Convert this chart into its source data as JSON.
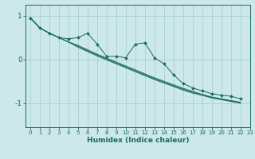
{
  "xlabel": "Humidex (Indice chaleur)",
  "bg_color": "#cce8e8",
  "grid_color": "#aacfcf",
  "line_color": "#1a6b60",
  "xlim": [
    -0.5,
    23
  ],
  "ylim": [
    -1.55,
    1.25
  ],
  "yticks": [
    -1,
    0,
    1
  ],
  "xticks": [
    0,
    1,
    2,
    3,
    4,
    5,
    6,
    7,
    8,
    9,
    10,
    11,
    12,
    13,
    14,
    15,
    16,
    17,
    18,
    19,
    20,
    21,
    22,
    23
  ],
  "straight_lines": [
    [
      0.95,
      0.72,
      0.6,
      0.5,
      0.4,
      0.32,
      0.22,
      0.12,
      0.03,
      -0.06,
      -0.15,
      -0.24,
      -0.33,
      -0.42,
      -0.5,
      -0.58,
      -0.66,
      -0.73,
      -0.8,
      -0.86,
      -0.9,
      -0.94,
      -0.98
    ],
    [
      0.95,
      0.72,
      0.6,
      0.5,
      0.4,
      0.3,
      0.2,
      0.1,
      0.01,
      -0.08,
      -0.17,
      -0.26,
      -0.35,
      -0.44,
      -0.52,
      -0.6,
      -0.68,
      -0.75,
      -0.81,
      -0.87,
      -0.91,
      -0.95,
      -0.99
    ],
    [
      0.95,
      0.72,
      0.6,
      0.5,
      0.4,
      0.28,
      0.18,
      0.08,
      -0.01,
      -0.1,
      -0.19,
      -0.28,
      -0.37,
      -0.46,
      -0.54,
      -0.62,
      -0.7,
      -0.77,
      -0.82,
      -0.88,
      -0.92,
      -0.96,
      -1.0
    ]
  ],
  "spike_series": [
    0.95,
    0.72,
    0.6,
    0.5,
    0.47,
    0.5,
    0.6,
    0.35,
    0.07,
    0.07,
    0.04,
    0.35,
    0.38,
    0.04,
    -0.1,
    -0.35,
    -0.55,
    -0.65,
    -0.72,
    -0.78,
    -0.82,
    -0.84,
    -0.9
  ]
}
